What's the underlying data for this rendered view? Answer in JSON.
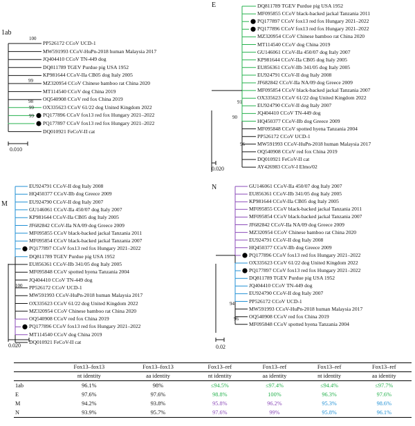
{
  "colors": {
    "green": "#23b04b",
    "blue": "#1f8fd4",
    "purple": "#8a49b8",
    "black": "#111111"
  },
  "panels": [
    {
      "id": "1ab",
      "label": "1ab",
      "scale": "0.010",
      "taxa": [
        {
          "name": "PP526172 CCoV UCD-1",
          "c": "black"
        },
        {
          "name": "MW591993 CCoV-HuPn-2018 human Malaysia 2017",
          "c": "black"
        },
        {
          "name": "JQ404410 CCoV TN-449 dog",
          "c": "black"
        },
        {
          "name": "DQ811789 TGEV Purdue pig USA 1952",
          "c": "black"
        },
        {
          "name": "KP981644 CCoV-IIa CB05 dog Italy 2005",
          "c": "black"
        },
        {
          "name": "MZ320954 CCoV Chinese bamboo rat China 2020",
          "c": "black"
        },
        {
          "name": "MT114540 CCoV dog China 2019",
          "c": "black"
        },
        {
          "name": "OQ540908 CCoV red fox China 2019",
          "c": "black"
        },
        {
          "name": "OX335623 CCoV 61/22 dog United Kingdom 2022",
          "c": "green"
        },
        {
          "name": "PQ177896 CCoV fox13 red fox Hungary 2021–2022",
          "c": "green",
          "dot": true
        },
        {
          "name": "PQ177897 CCoV fox13 red fox Hungary 2021–2022",
          "c": "green",
          "dot": true
        },
        {
          "name": "DQ010921 FeCoV-II cat",
          "c": "black"
        }
      ],
      "bootstrap": [
        "100",
        "99",
        "98",
        "99",
        "99"
      ]
    },
    {
      "id": "E",
      "label": "E",
      "scale": "0.020",
      "taxa": [
        {
          "name": "DQ811789 TGEV Purdue pig USA 1952",
          "c": "green"
        },
        {
          "name": "MF095855 CCoV black-backed jackal Tanzania 2011",
          "c": "green"
        },
        {
          "name": "PQ177897 CCoV fox13 red fox Hungary 2021–2022",
          "c": "green",
          "dot": true
        },
        {
          "name": "PQ177896 CCoV fox13 red fox Hungary 2021–2022",
          "c": "green",
          "dot": true
        },
        {
          "name": "MZ320954 CCoV Chinese bamboo rat China 2020",
          "c": "green"
        },
        {
          "name": "MT114540 CCoV dog China 2019",
          "c": "green"
        },
        {
          "name": "GU146061 CCoV-IIa 450/07 dog Italy 2007",
          "c": "green"
        },
        {
          "name": "KP981644 CCoV-IIa CB05 dog Italy 2005",
          "c": "green"
        },
        {
          "name": "EU856361 CCoV-IIb 341/05 dog Italy 2005",
          "c": "green"
        },
        {
          "name": "EU924791 CCoV-II dog Italy 2008",
          "c": "green"
        },
        {
          "name": "JF682842 CCoV-IIa NA/09 dog Greece 2009",
          "c": "green"
        },
        {
          "name": "MF095854 CCoV black-backed jackal Tanzania 2007",
          "c": "green"
        },
        {
          "name": "OX335623 CCoV 61/22 dog United Kingdom 2022",
          "c": "green"
        },
        {
          "name": "EU924790 CCoV-II dog Italy 2007",
          "c": "green"
        },
        {
          "name": "JQ404410 CCoV TN-449 dog",
          "c": "green"
        },
        {
          "name": "HQ450377 CCoV-IIb dog Greece 2009",
          "c": "green"
        },
        {
          "name": "MF095848 CCoV spotted hyena Tanzania 2004",
          "c": "black"
        },
        {
          "name": "PP526172 CCoV UCD-1",
          "c": "black"
        },
        {
          "name": "MW591993 CCoV-HuPn-2018 human Malaysia 2017",
          "c": "black"
        },
        {
          "name": "OQ540908 CCoV red fox China 2019",
          "c": "black"
        },
        {
          "name": "DQ010921 FeCoV-II cat",
          "c": "black"
        },
        {
          "name": "AY426983 CCoV-I Elmo/02",
          "c": "black"
        }
      ],
      "bootstrap": [
        "91",
        "90",
        "96"
      ]
    },
    {
      "id": "M",
      "label": "M",
      "scale": "0.020",
      "taxa": [
        {
          "name": "EU924791 CCoV-II dog Italy 2008",
          "c": "blue"
        },
        {
          "name": "HQ450377 CCoV-IIb dog Greece 2009",
          "c": "blue"
        },
        {
          "name": "EU924790 CCoV-II dog Italy 2007",
          "c": "blue"
        },
        {
          "name": "GU146061 CCoV-IIa 450/07 dog Italy 2007",
          "c": "blue"
        },
        {
          "name": "KP981644 CCoV-IIa CB05 dog Italy 2005",
          "c": "blue"
        },
        {
          "name": "JF682842 CCoV-IIa NA/09 dog Greece 2009",
          "c": "blue"
        },
        {
          "name": "MF095855 CCoV black-backed jackal Tanzania 2011",
          "c": "blue"
        },
        {
          "name": "MF095854 CCoV black-backed jackal Tanzania 2007",
          "c": "blue"
        },
        {
          "name": "PQ177897 CCoV fox13 red fox Hungary 2021–2022",
          "c": "blue",
          "dot": true
        },
        {
          "name": "DQ811789 TGEV Purdue pig USA 1952",
          "c": "blue"
        },
        {
          "name": "EU856361 CCoV-IIb 341/05 dog Italy 2005",
          "c": "black"
        },
        {
          "name": "MF095848 CCoV spotted hyena Tanzania 2004",
          "c": "black"
        },
        {
          "name": "JQ404410 CCoV TN-449 dog",
          "c": "black"
        },
        {
          "name": "PP526172 CCoV UCD-1",
          "c": "black"
        },
        {
          "name": "MW591993 CCoV-HuPn-2018 human Malaysia 2017",
          "c": "black"
        },
        {
          "name": "OX335623 CCoV 61/22 dog United Kingdom 2022",
          "c": "black"
        },
        {
          "name": "MZ320954 CCoV Chinese bamboo rat China 2020",
          "c": "black"
        },
        {
          "name": "OQ540908 CCoV red fox China 2019",
          "c": "purple"
        },
        {
          "name": "PQ177896 CCoV fox13 red fox Hungary 2021–2022",
          "c": "purple",
          "dot": true
        },
        {
          "name": "MT114540 CCoV dog China 2019",
          "c": "purple"
        },
        {
          "name": "DQ010921 FeCoV-II cat",
          "c": "black"
        }
      ],
      "bootstrap": [
        "100"
      ]
    },
    {
      "id": "N",
      "label": "N",
      "scale": "0.02",
      "taxa": [
        {
          "name": "GU146061 CCoV-IIa 450/07 dog Italy 2007",
          "c": "purple"
        },
        {
          "name": "EU856361 CCoV-IIb 341/05 dog Italy 2005",
          "c": "purple"
        },
        {
          "name": "KP981644 CCoV-IIa CB05 dog Italy 2005",
          "c": "purple"
        },
        {
          "name": "MF095855 CCoV black-backed jackal Tanzania 2011",
          "c": "purple"
        },
        {
          "name": "MF095854 CCoV black-backed jackal Tanzania 2007",
          "c": "purple"
        },
        {
          "name": "JF682842 CCoV-IIa NA/09 dog Greece 2009",
          "c": "purple"
        },
        {
          "name": "MZ320954 CCoV Chinese bamboo rat China 2020",
          "c": "purple"
        },
        {
          "name": "EU924791 CCoV-II dog Italy 2008",
          "c": "purple"
        },
        {
          "name": "HQ450377 CCoV-IIb dog Greece 2009",
          "c": "purple"
        },
        {
          "name": "PQ177896 CCoV fox13 red fox Hungary 2021–2022",
          "c": "purple",
          "dot": true
        },
        {
          "name": "OX335623 CCoV 61/22 dog United Kingdom 2022",
          "c": "blue"
        },
        {
          "name": "PQ177897 CCoV fox13 red fox Hungary 2021–2022",
          "c": "blue",
          "dot": true
        },
        {
          "name": "DQ811789 TGEV Purdue pig USA 1952",
          "c": "blue"
        },
        {
          "name": "JQ404410 CCoV TN-449 dog",
          "c": "blue"
        },
        {
          "name": "EU924790 CCoV-II dog Italy 2007",
          "c": "blue"
        },
        {
          "name": "PP526172 CCoV UCD-1",
          "c": "blue"
        },
        {
          "name": "MW591993 CCoV-HuPn-2018 human Malaysia 2017",
          "c": "black"
        },
        {
          "name": "OQ540908 CCoV red fox China 2019",
          "c": "black"
        },
        {
          "name": "MF095848 CCoV spotted hyena Tanzania 2004",
          "c": "black"
        }
      ],
      "bootstrap": [
        "94",
        "96"
      ]
    }
  ],
  "table": {
    "headers": [
      [
        "",
        "Fox13–fox13",
        "Fox13–fox13",
        "Fox13–ref",
        "Fox13–ref",
        "Fox13–ref",
        "Fox13–ref"
      ],
      [
        "",
        "nt identity",
        "aa identity",
        "nt identity",
        "aa identity",
        "nt identity",
        "aa identity"
      ]
    ],
    "rows": [
      {
        "label": "1ab",
        "cells": [
          {
            "v": "96.1%",
            "c": "black"
          },
          {
            "v": "98%",
            "c": "black"
          },
          {
            "v": "≤94.5%",
            "c": "green"
          },
          {
            "v": "≤97.4%",
            "c": "green"
          },
          {
            "v": "≤94.4%",
            "c": "green"
          },
          {
            "v": "≤97.7%",
            "c": "green"
          }
        ]
      },
      {
        "label": "E",
        "cells": [
          {
            "v": "97.6%",
            "c": "black"
          },
          {
            "v": "97.6%",
            "c": "black"
          },
          {
            "v": "98.8%",
            "c": "green"
          },
          {
            "v": "100%",
            "c": "green"
          },
          {
            "v": "96.3%",
            "c": "green"
          },
          {
            "v": "97.6%",
            "c": "green"
          }
        ]
      },
      {
        "label": "M",
        "cells": [
          {
            "v": "94.2%",
            "c": "black"
          },
          {
            "v": "93.8%",
            "c": "black"
          },
          {
            "v": "95.8%",
            "c": "purple"
          },
          {
            "v": "96.2%",
            "c": "purple"
          },
          {
            "v": "95.3%",
            "c": "blue"
          },
          {
            "v": "98.6%",
            "c": "blue"
          }
        ]
      },
      {
        "label": "N",
        "cells": [
          {
            "v": "93.9%",
            "c": "black"
          },
          {
            "v": "95.7%",
            "c": "black"
          },
          {
            "v": "97.6%",
            "c": "purple"
          },
          {
            "v": "99%",
            "c": "purple"
          },
          {
            "v": "95.8%",
            "c": "blue"
          },
          {
            "v": "96.1%",
            "c": "blue"
          }
        ]
      }
    ]
  }
}
